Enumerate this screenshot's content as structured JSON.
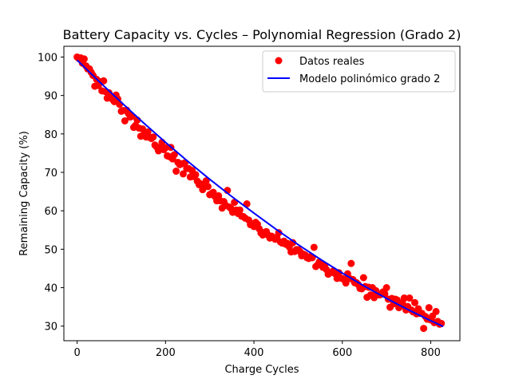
{
  "chart_data": {
    "type": "scatter",
    "title": "Battery Capacity vs. Cycles – Polynomial Regression (Grado 2)",
    "xlabel": "Charge Cycles",
    "ylabel": "Remaining Capacity (%)",
    "xlim": [
      -30,
      866
    ],
    "ylim": [
      26.2,
      102.8
    ],
    "xticks": [
      0,
      200,
      400,
      600,
      800
    ],
    "yticks": [
      30,
      40,
      50,
      60,
      70,
      80,
      90,
      100
    ],
    "grid": false,
    "legend_position": "top-right",
    "series": [
      {
        "name": "Datos reales",
        "kind": "scatter",
        "color": "#ff0000",
        "points": [
          [
            0,
            100.0
          ],
          [
            4,
            99.6
          ],
          [
            8,
            99.8
          ],
          [
            12,
            98.4
          ],
          [
            16,
            99.5
          ],
          [
            20,
            97.7
          ],
          [
            24,
            96.9
          ],
          [
            28,
            96.9
          ],
          [
            32,
            96.0
          ],
          [
            36,
            95.2
          ],
          [
            40,
            92.4
          ],
          [
            44,
            94.2
          ],
          [
            48,
            92.6
          ],
          [
            52,
            93.6
          ],
          [
            56,
            91.2
          ],
          [
            60,
            93.8
          ],
          [
            64,
            91.0
          ],
          [
            68,
            89.3
          ],
          [
            72,
            90.7
          ],
          [
            76,
            89.9
          ],
          [
            80,
            89.0
          ],
          [
            84,
            88.4
          ],
          [
            88,
            90.1
          ],
          [
            92,
            89.1
          ],
          [
            96,
            87.7
          ],
          [
            100,
            85.9
          ],
          [
            104,
            86.1
          ],
          [
            108,
            83.4
          ],
          [
            112,
            86.2
          ],
          [
            116,
            85.3
          ],
          [
            120,
            84.4
          ],
          [
            124,
            84.6
          ],
          [
            128,
            81.7
          ],
          [
            132,
            82.2
          ],
          [
            136,
            83.6
          ],
          [
            140,
            81.5
          ],
          [
            144,
            79.4
          ],
          [
            148,
            81.3
          ],
          [
            152,
            80.0
          ],
          [
            156,
            79.2
          ],
          [
            160,
            80.5
          ],
          [
            164,
            79.1
          ],
          [
            168,
            78.8
          ],
          [
            172,
            79.2
          ],
          [
            176,
            77.1
          ],
          [
            180,
            76.6
          ],
          [
            184,
            75.6
          ],
          [
            188,
            76.4
          ],
          [
            192,
            77.8
          ],
          [
            196,
            75.9
          ],
          [
            200,
            76.4
          ],
          [
            204,
            74.3
          ],
          [
            208,
            74.1
          ],
          [
            212,
            76.5
          ],
          [
            216,
            73.5
          ],
          [
            220,
            74.6
          ],
          [
            224,
            70.3
          ],
          [
            228,
            72.6
          ],
          [
            232,
            72.0
          ],
          [
            236,
            72.2
          ],
          [
            240,
            69.6
          ],
          [
            244,
            72.5
          ],
          [
            248,
            71.0
          ],
          [
            252,
            71.0
          ],
          [
            256,
            68.8
          ],
          [
            260,
            70.5
          ],
          [
            264,
            68.9
          ],
          [
            268,
            69.4
          ],
          [
            272,
            67.7
          ],
          [
            276,
            66.8
          ],
          [
            280,
            67.0
          ],
          [
            284,
            65.5
          ],
          [
            288,
            66.5
          ],
          [
            292,
            67.8
          ],
          [
            296,
            66.3
          ],
          [
            300,
            64.2
          ],
          [
            304,
            64.5
          ],
          [
            308,
            64.8
          ],
          [
            312,
            63.7
          ],
          [
            316,
            62.6
          ],
          [
            320,
            63.9
          ],
          [
            324,
            62.6
          ],
          [
            328,
            60.7
          ],
          [
            332,
            62.4
          ],
          [
            336,
            61.4
          ],
          [
            340,
            65.3
          ],
          [
            344,
            61.0
          ],
          [
            348,
            60.6
          ],
          [
            352,
            59.6
          ],
          [
            356,
            62.2
          ],
          [
            360,
            60.2
          ],
          [
            364,
            59.3
          ],
          [
            368,
            60.2
          ],
          [
            372,
            58.6
          ],
          [
            376,
            58.5
          ],
          [
            380,
            58.1
          ],
          [
            384,
            61.8
          ],
          [
            388,
            57.6
          ],
          [
            392,
            56.4
          ],
          [
            396,
            56.6
          ],
          [
            400,
            55.9
          ],
          [
            404,
            57.0
          ],
          [
            408,
            56.5
          ],
          [
            412,
            55.3
          ],
          [
            416,
            54.2
          ],
          [
            420,
            53.7
          ],
          [
            424,
            54.4
          ],
          [
            428,
            54.6
          ],
          [
            432,
            53.7
          ],
          [
            436,
            52.9
          ],
          [
            440,
            53.4
          ],
          [
            444,
            53.0
          ],
          [
            448,
            52.6
          ],
          [
            452,
            53.1
          ],
          [
            456,
            54.3
          ],
          [
            460,
            51.9
          ],
          [
            464,
            51.6
          ],
          [
            468,
            52.1
          ],
          [
            472,
            51.3
          ],
          [
            476,
            51.5
          ],
          [
            480,
            50.6
          ],
          [
            484,
            49.3
          ],
          [
            488,
            51.7
          ],
          [
            492,
            49.4
          ],
          [
            496,
            49.9
          ],
          [
            500,
            49.9
          ],
          [
            504,
            49.4
          ],
          [
            508,
            48.3
          ],
          [
            512,
            48.7
          ],
          [
            516,
            48.5
          ],
          [
            520,
            47.8
          ],
          [
            524,
            47.6
          ],
          [
            528,
            48.1
          ],
          [
            532,
            47.8
          ],
          [
            536,
            50.5
          ],
          [
            540,
            45.5
          ],
          [
            544,
            45.9
          ],
          [
            548,
            46.7
          ],
          [
            552,
            46.4
          ],
          [
            556,
            45.3
          ],
          [
            560,
            45.8
          ],
          [
            564,
            44.7
          ],
          [
            568,
            43.5
          ],
          [
            572,
            43.9
          ],
          [
            576,
            44.0
          ],
          [
            580,
            44.4
          ],
          [
            584,
            43.6
          ],
          [
            588,
            42.4
          ],
          [
            592,
            43.9
          ],
          [
            596,
            42.5
          ],
          [
            600,
            42.4
          ],
          [
            604,
            42.1
          ],
          [
            608,
            41.2
          ],
          [
            612,
            43.6
          ],
          [
            616,
            42.4
          ],
          [
            620,
            46.3
          ],
          [
            624,
            42.1
          ],
          [
            628,
            41.3
          ],
          [
            632,
            41.3
          ],
          [
            636,
            40.8
          ],
          [
            640,
            39.8
          ],
          [
            644,
            39.7
          ],
          [
            648,
            42.6
          ],
          [
            652,
            40.3
          ],
          [
            656,
            37.5
          ],
          [
            660,
            40.1
          ],
          [
            664,
            38.1
          ],
          [
            668,
            40.0
          ],
          [
            672,
            37.4
          ],
          [
            676,
            39.2
          ],
          [
            680,
            38.3
          ],
          [
            684,
            38.1
          ],
          [
            688,
            38.3
          ],
          [
            692,
            38.9
          ],
          [
            696,
            38.4
          ],
          [
            700,
            40.0
          ],
          [
            704,
            37.0
          ],
          [
            708,
            34.9
          ],
          [
            712,
            37.2
          ],
          [
            716,
            35.8
          ],
          [
            720,
            37.0
          ],
          [
            724,
            36.8
          ],
          [
            728,
            34.8
          ],
          [
            732,
            35.3
          ],
          [
            736,
            36.1
          ],
          [
            740,
            37.3
          ],
          [
            744,
            34.2
          ],
          [
            748,
            35.1
          ],
          [
            752,
            37.3
          ],
          [
            756,
            34.2
          ],
          [
            760,
            33.7
          ],
          [
            764,
            36.1
          ],
          [
            768,
            33.2
          ],
          [
            772,
            34.5
          ],
          [
            776,
            33.3
          ],
          [
            780,
            33.3
          ],
          [
            784,
            29.4
          ],
          [
            788,
            32.5
          ],
          [
            792,
            31.8
          ],
          [
            796,
            34.8
          ],
          [
            800,
            31.6
          ],
          [
            804,
            32.6
          ],
          [
            808,
            30.9
          ],
          [
            812,
            33.8
          ],
          [
            816,
            31.2
          ],
          [
            820,
            30.5
          ],
          [
            824,
            30.7
          ]
        ]
      },
      {
        "name": "Modelo polinómico grado 2",
        "kind": "line",
        "color": "#0000ff",
        "x": [
          0,
          50,
          100,
          150,
          200,
          250,
          300,
          350,
          400,
          450,
          500,
          550,
          600,
          650,
          700,
          750,
          800,
          828
        ],
        "values": [
          99.2,
          93.6,
          88.2,
          82.9,
          77.8,
          72.9,
          68.2,
          63.7,
          59.4,
          55.2,
          51.2,
          47.4,
          43.8,
          40.4,
          37.2,
          34.2,
          31.4,
          29.9
        ]
      }
    ]
  }
}
